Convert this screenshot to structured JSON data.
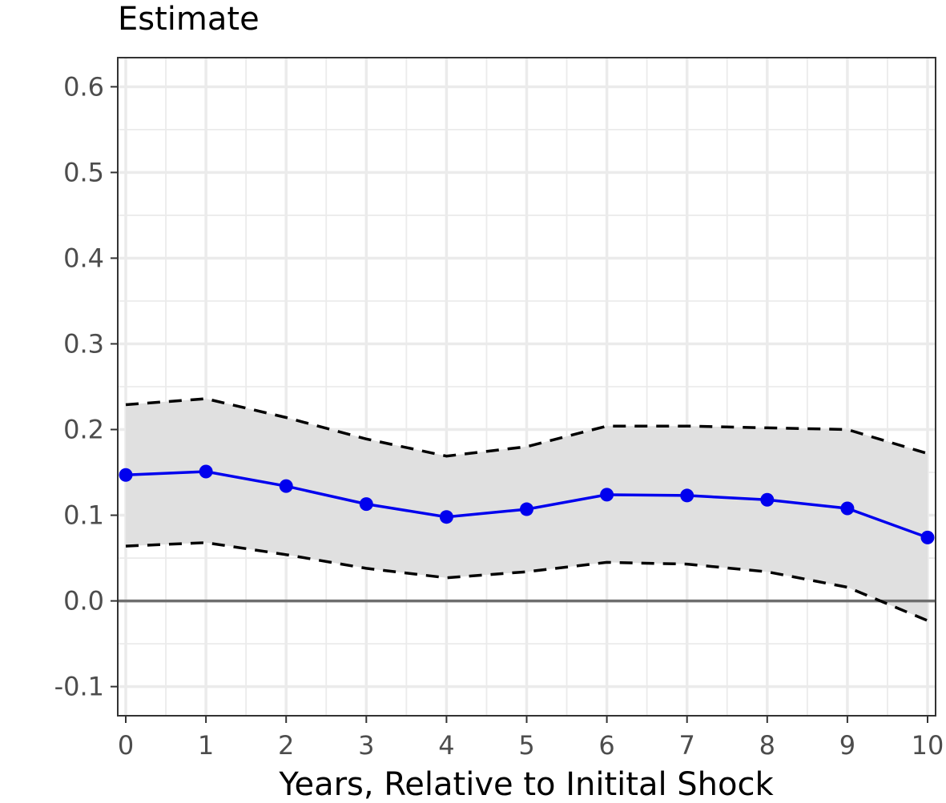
{
  "chart_data": {
    "type": "line",
    "title": "",
    "ylabel": "Estimate",
    "xlabel": "Years, Relative to Initital Shock",
    "x": [
      0,
      1,
      2,
      3,
      4,
      5,
      6,
      7,
      8,
      9,
      10
    ],
    "series": [
      {
        "values": [
          0.147,
          0.151,
          0.134,
          0.113,
          0.098,
          0.107,
          0.124,
          0.123,
          0.118,
          0.108,
          0.074
        ]
      },
      {
        "values": [
          0.229,
          0.236,
          0.214,
          0.189,
          0.169,
          0.18,
          0.204,
          0.204,
          0.202,
          0.2,
          0.172
        ]
      },
      {
        "values": [
          0.064,
          0.068,
          0.054,
          0.038,
          0.027,
          0.034,
          0.045,
          0.043,
          0.034,
          0.016,
          -0.023
        ]
      }
    ],
    "reference_line_y": 0,
    "xlim": [
      -0.1,
      10.1
    ],
    "ylim": [
      -0.134,
      0.634
    ],
    "xticks": [
      0,
      1,
      2,
      3,
      4,
      5,
      6,
      7,
      8,
      9,
      10
    ],
    "yticks": [
      -0.1,
      0.0,
      0.1,
      0.2,
      0.3,
      0.4,
      0.5,
      0.6
    ],
    "ytick_labels": [
      "-0.1",
      "0.0",
      "0.1",
      "0.2",
      "0.3",
      "0.4",
      "0.5",
      "0.6"
    ],
    "grid": true,
    "legend": "none",
    "colors": {
      "estimate": "#0000ee",
      "ci_line": "#000000",
      "ci_fill": "#e0e0e0",
      "zero_line": "#6e6e6e",
      "grid": "#ebebeb"
    }
  }
}
